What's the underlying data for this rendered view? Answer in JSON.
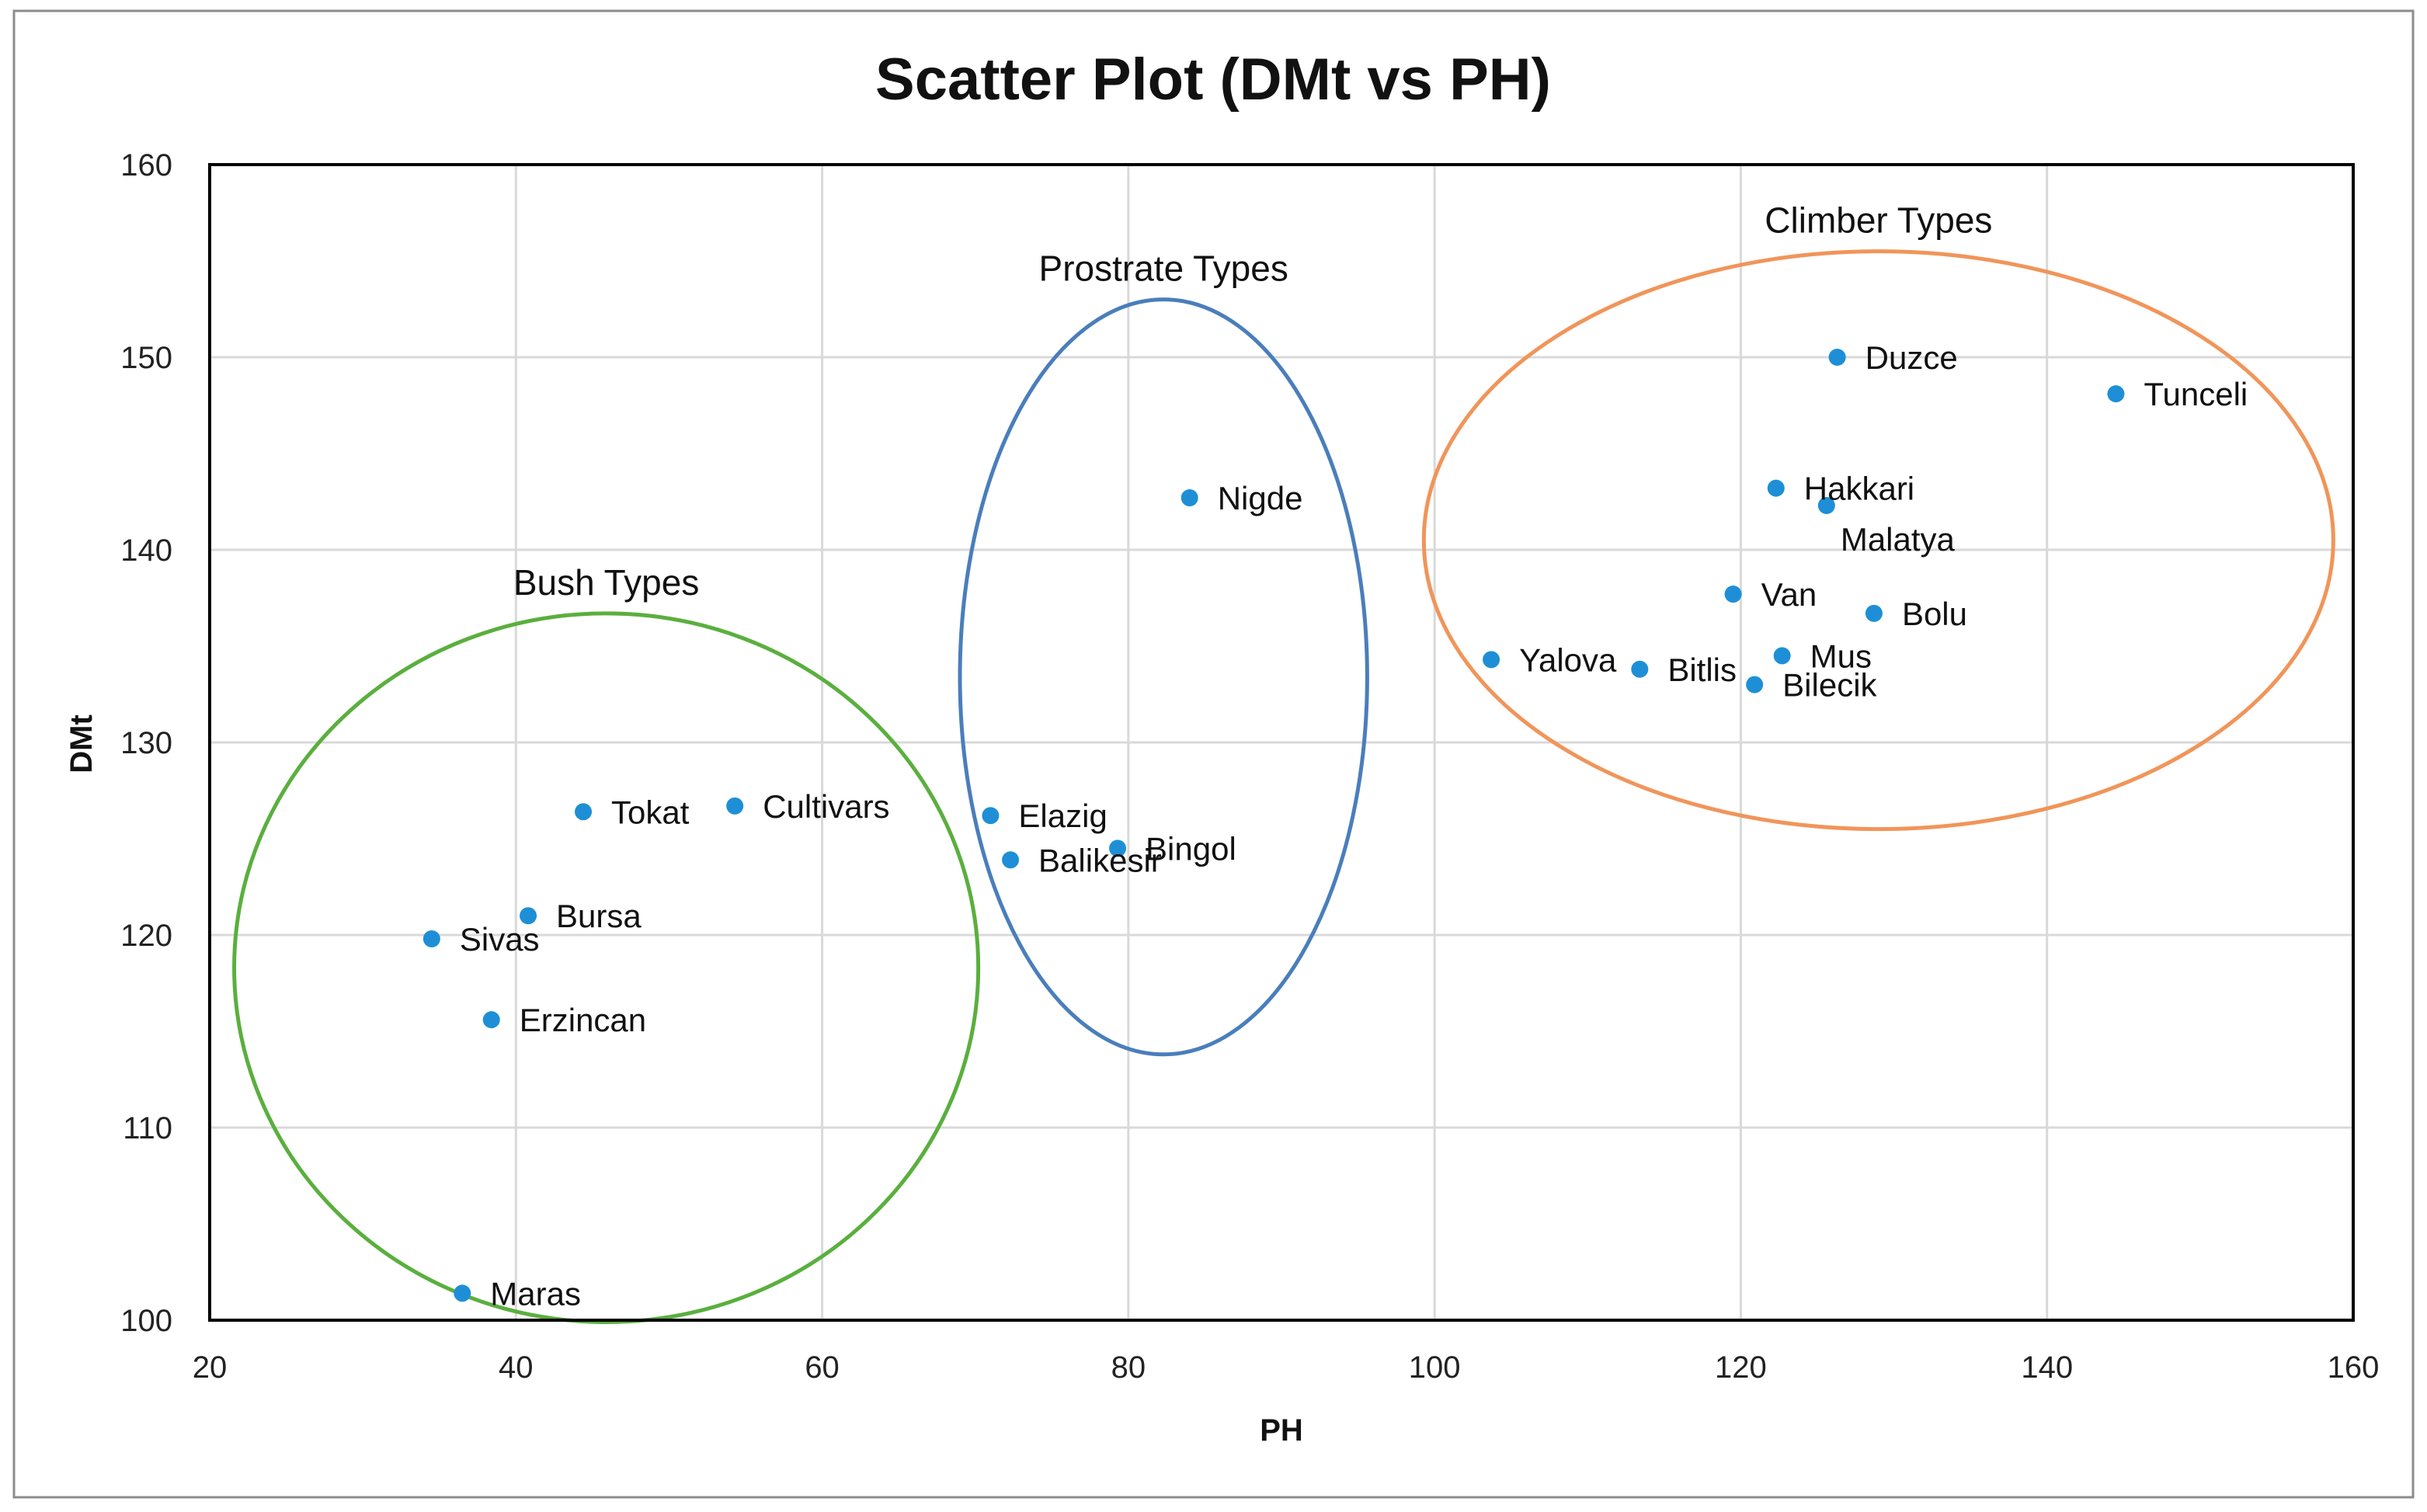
{
  "chart_data": {
    "type": "scatter",
    "title": "Scatter Plot (DMt vs PH)",
    "xlabel": "PH",
    "ylabel": "DMt",
    "xlim": [
      20,
      160
    ],
    "ylim": [
      100,
      160
    ],
    "xticks": [
      20,
      40,
      60,
      80,
      100,
      120,
      140,
      160
    ],
    "yticks": [
      100,
      110,
      120,
      130,
      140,
      150,
      160
    ],
    "grid": true,
    "colors": {
      "marker": "#1E8FD6",
      "bush": "#5AAF3E",
      "prostrate": "#4A7EBB",
      "climber": "#F0955A",
      "grid": "#D9D9D9",
      "axis": "#000000"
    },
    "points": [
      {
        "name": "Duzce",
        "x": 126.3,
        "y": 150.0,
        "label_pos": "right"
      },
      {
        "name": "Tunceli",
        "x": 144.5,
        "y": 148.1,
        "label_pos": "right"
      },
      {
        "name": "Hakkari",
        "x": 122.3,
        "y": 143.2,
        "label_pos": "right"
      },
      {
        "name": "Malatya",
        "x": 125.6,
        "y": 142.3,
        "label_pos": "below"
      },
      {
        "name": "Van",
        "x": 119.5,
        "y": 137.7,
        "label_pos": "right"
      },
      {
        "name": "Bolu",
        "x": 128.7,
        "y": 136.7,
        "label_pos": "right"
      },
      {
        "name": "Yalova",
        "x": 103.7,
        "y": 134.3,
        "label_pos": "right"
      },
      {
        "name": "Bitlis",
        "x": 113.4,
        "y": 133.8,
        "label_pos": "right"
      },
      {
        "name": "Mus",
        "x": 122.7,
        "y": 134.5,
        "label_pos": "right"
      },
      {
        "name": "Bilecik",
        "x": 120.9,
        "y": 133.0,
        "label_pos": "right"
      },
      {
        "name": "Nigde",
        "x": 84.0,
        "y": 142.7,
        "label_pos": "right"
      },
      {
        "name": "Elazig",
        "x": 71.0,
        "y": 126.2,
        "label_pos": "right"
      },
      {
        "name": "Balikesir",
        "x": 72.3,
        "y": 123.9,
        "label_pos": "right"
      },
      {
        "name": "Bingol",
        "x": 79.3,
        "y": 124.5,
        "label_pos": "right"
      },
      {
        "name": "Tokat",
        "x": 44.4,
        "y": 126.4,
        "label_pos": "right"
      },
      {
        "name": "Cultivars",
        "x": 54.3,
        "y": 126.7,
        "label_pos": "right"
      },
      {
        "name": "Bursa",
        "x": 40.8,
        "y": 121.0,
        "label_pos": "right"
      },
      {
        "name": "Sivas",
        "x": 34.5,
        "y": 119.8,
        "label_pos": "right"
      },
      {
        "name": "Erzincan",
        "x": 38.4,
        "y": 115.6,
        "label_pos": "right"
      },
      {
        "name": "Maras",
        "x": 36.5,
        "y": 101.4,
        "label_pos": "right"
      }
    ],
    "groups": [
      {
        "name": "Bush Types",
        "color_key": "bush",
        "cx": 45.9,
        "cy": 118.3,
        "rx": 24.3,
        "ry": 18.4
      },
      {
        "name": "Prostrate Types",
        "color_key": "prostrate",
        "cx": 82.3,
        "cy": 133.4,
        "rx": 13.3,
        "ry": 19.6
      },
      {
        "name": "Climber Types",
        "color_key": "climber",
        "cx": 129.0,
        "cy": 140.5,
        "rx": 29.7,
        "ry": 15.0
      }
    ]
  }
}
